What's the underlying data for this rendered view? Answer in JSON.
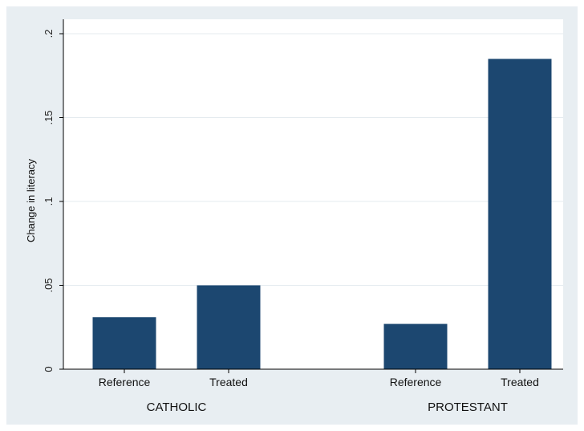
{
  "chart_data": {
    "type": "bar",
    "title": "",
    "ylabel": "Change in literacy",
    "xlabel": "",
    "ylim": [
      0,
      0.2
    ],
    "yticks": [
      0,
      0.05,
      0.1,
      0.15,
      0.2
    ],
    "ytick_labels": [
      "0",
      ".05",
      ".1",
      ".15",
      ".2"
    ],
    "grid": true,
    "bar_color": "#1c4770",
    "groups": [
      {
        "label": "CATHOLIC",
        "bars": [
          {
            "category": "Reference",
            "value": 0.031
          },
          {
            "category": "Treated",
            "value": 0.05
          }
        ]
      },
      {
        "label": "PROTESTANT",
        "bars": [
          {
            "category": "Reference",
            "value": 0.027
          },
          {
            "category": "Treated",
            "value": 0.185
          }
        ]
      }
    ]
  }
}
